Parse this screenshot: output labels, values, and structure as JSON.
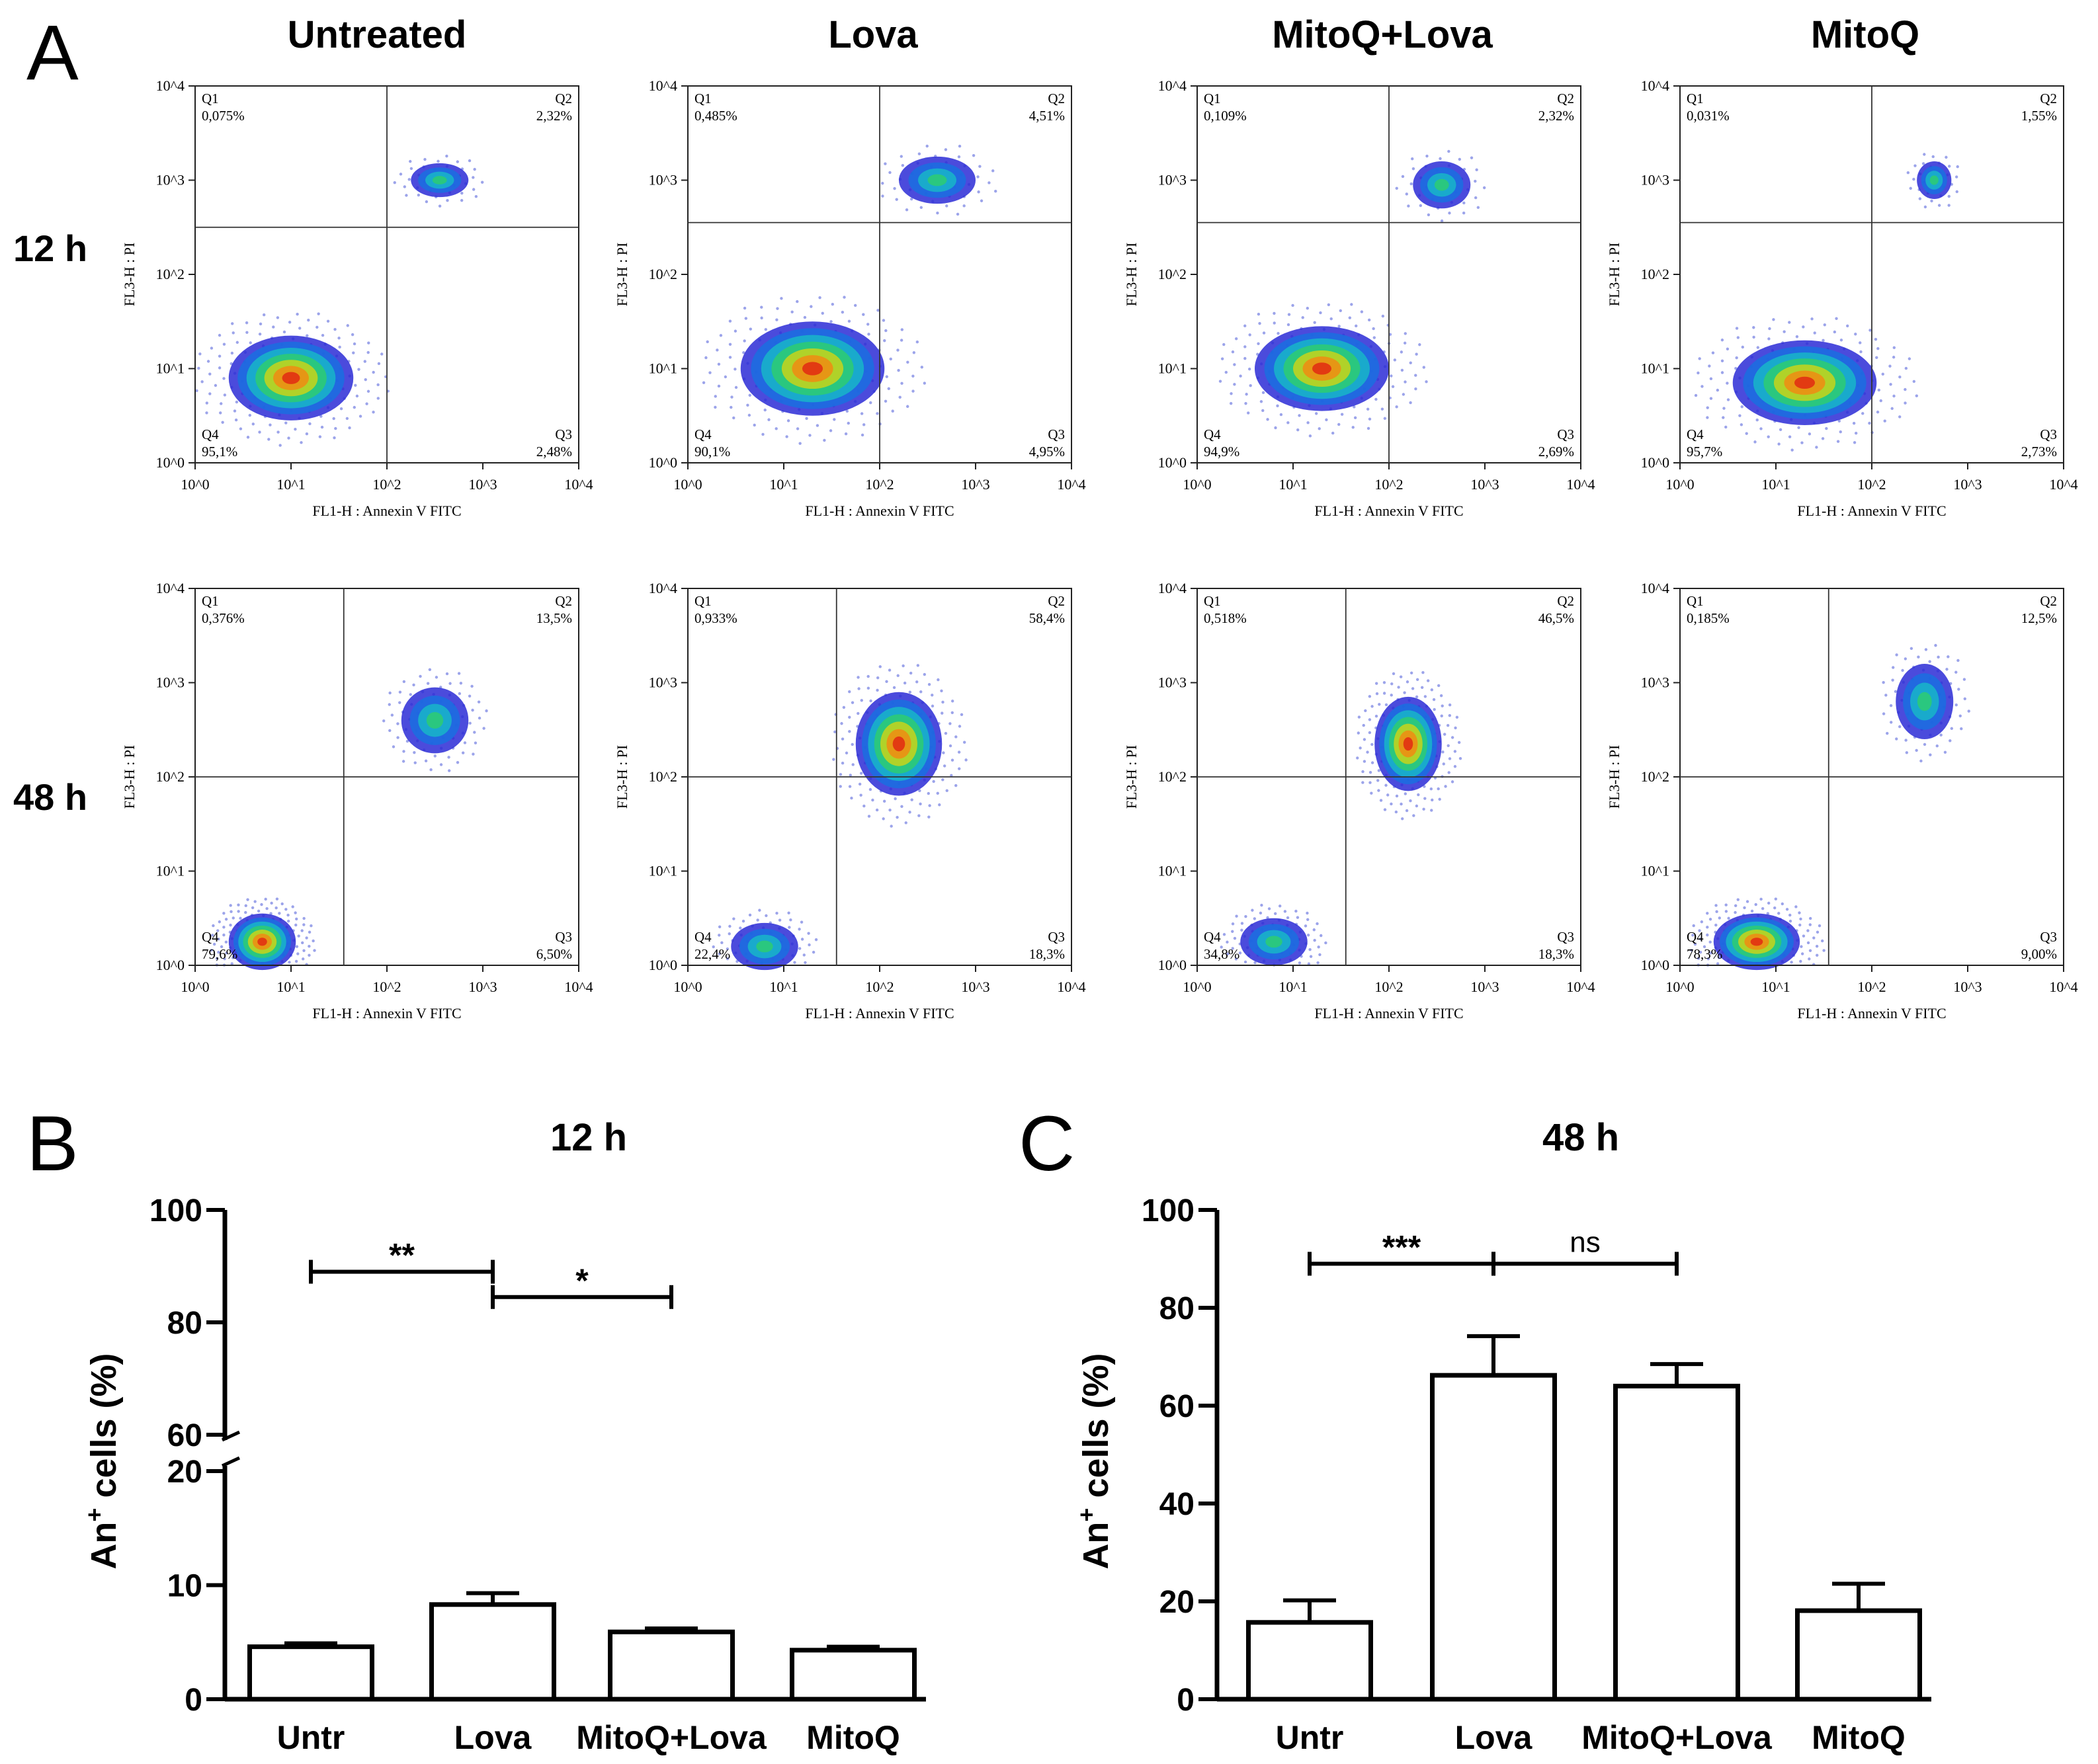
{
  "panel_labels": {
    "A": "A",
    "B": "B",
    "C": "C"
  },
  "columns": [
    "Untreated",
    "Lova",
    "MitoQ+Lova",
    "MitoQ"
  ],
  "rows": [
    "12 h",
    "48 h"
  ],
  "flow_axes": {
    "xlabel": "FL1-H : Annexin V FITC",
    "ylabel": "FL3-H : PI",
    "ticks": [
      "10^0",
      "10^1",
      "10^2",
      "10^3",
      "10^4"
    ],
    "quadrants": [
      "Q1",
      "Q2",
      "Q3",
      "Q4"
    ]
  },
  "flow_plots": [
    [
      {
        "Q1": "0,075%",
        "Q2": "2,32%",
        "Q3": "2,48%",
        "Q4": "95,1%"
      },
      {
        "Q1": "0,485%",
        "Q2": "4,51%",
        "Q3": "4,95%",
        "Q4": "90,1%"
      },
      {
        "Q1": "0,109%",
        "Q2": "2,32%",
        "Q3": "2,69%",
        "Q4": "94,9%"
      },
      {
        "Q1": "0,031%",
        "Q2": "1,55%",
        "Q3": "2,73%",
        "Q4": "95,7%"
      }
    ],
    [
      {
        "Q1": "0,376%",
        "Q2": "13,5%",
        "Q3": "6,50%",
        "Q4": "79,6%"
      },
      {
        "Q1": "0,933%",
        "Q2": "58,4%",
        "Q3": "18,3%",
        "Q4": "22,4%"
      },
      {
        "Q1": "0,518%",
        "Q2": "46,5%",
        "Q3": "18,3%",
        "Q4": "34,8%"
      },
      {
        "Q1": "0,185%",
        "Q2": "12,5%",
        "Q3": "9,00%",
        "Q4": "78,3%"
      }
    ]
  ],
  "chart_data": [
    {
      "type": "bar",
      "title": "12 h",
      "ylabel": "An+ cells (%)",
      "ylabel_main": "An",
      "ylabel_sup": "+",
      "ylabel_rest": " cells (%)",
      "categories": [
        "Untr",
        "Lova",
        "MitoQ+Lova",
        "MitoQ"
      ],
      "values": [
        4.6,
        8.3,
        5.9,
        4.3
      ],
      "errors": [
        0.3,
        1.0,
        0.3,
        0.3
      ],
      "broken_axis": {
        "lower": [
          0,
          20
        ],
        "upper": [
          60,
          100
        ]
      },
      "yticks_lower": [
        0,
        10,
        20
      ],
      "yticks_upper": [
        60,
        80,
        100
      ],
      "significance": [
        {
          "from": 0,
          "to": 1,
          "y": 89,
          "label": "**"
        },
        {
          "from": 1,
          "to": 2,
          "y": 84.5,
          "label": "*"
        }
      ]
    },
    {
      "type": "bar",
      "title": "48 h",
      "ylabel": "An+ cells (%)",
      "ylabel_main": "An",
      "ylabel_sup": "+",
      "ylabel_rest": " cells (%)",
      "categories": [
        "Untr",
        "Lova",
        "MitoQ+Lova",
        "MitoQ"
      ],
      "values": [
        15.7,
        66.2,
        64.0,
        18.1
      ],
      "errors": [
        4.5,
        8.0,
        4.5,
        5.5
      ],
      "ylim": [
        0,
        100
      ],
      "yticks": [
        0,
        20,
        40,
        60,
        80,
        100
      ],
      "significance": [
        {
          "from": 0,
          "to": 1,
          "y": 89,
          "label": "***"
        },
        {
          "from": 1,
          "to": 2,
          "y": 89,
          "label": "ns"
        }
      ]
    }
  ]
}
